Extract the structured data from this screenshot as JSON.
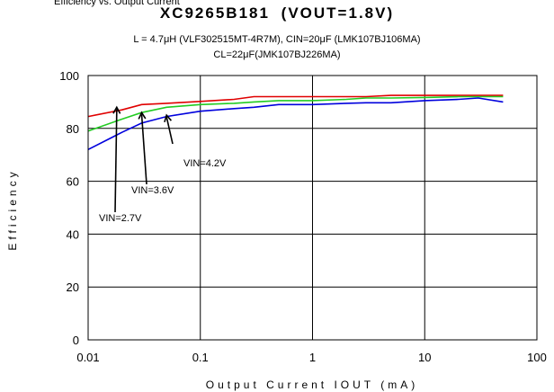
{
  "header": {
    "cut_off": "Efficiency vs. Output Current",
    "title": "XC9265B181",
    "title_suffix": "(VOUT=1.8V)",
    "subtitle_line1": "L = 4.7μH (VLF302515MT-4R7M), CIN=20μF (LMK107BJ106MA)",
    "subtitle_line2": "CL=22μF(JMK107BJ226MA)"
  },
  "chart_data": {
    "type": "line",
    "title": "XC9265B181",
    "xlabel": "Output Current IOUT (mA)",
    "ylabel": "Efficiency",
    "x_scale": "log",
    "xlim": [
      0.01,
      100
    ],
    "ylim": [
      0,
      100
    ],
    "x_ticks": [
      "0.01",
      "0.1",
      "1",
      "10",
      "100"
    ],
    "y_ticks": [
      "0",
      "20",
      "40",
      "60",
      "80",
      "100"
    ],
    "grid": true,
    "series": [
      {
        "name": "VIN=4.2V",
        "color": "#e00000",
        "x": [
          0.01,
          0.02,
          0.03,
          0.05,
          0.1,
          0.2,
          0.3,
          0.5,
          1,
          2,
          3,
          5,
          10,
          20,
          30,
          50
        ],
        "y": [
          84.5,
          87,
          89,
          89.5,
          90.2,
          91,
          92,
          92,
          92,
          92,
          92,
          92.5,
          92.5,
          92.5,
          92.5,
          92.5
        ]
      },
      {
        "name": "VIN=3.6V",
        "color": "#22cc22",
        "x": [
          0.01,
          0.02,
          0.03,
          0.05,
          0.1,
          0.2,
          0.3,
          0.5,
          1,
          2,
          3,
          5,
          10,
          20,
          30,
          50
        ],
        "y": [
          79,
          83.5,
          86,
          88,
          89,
          89.5,
          90,
          90.5,
          90.5,
          91,
          91.5,
          91.5,
          91.7,
          92,
          92,
          92
        ]
      },
      {
        "name": "VIN=2.7V",
        "color": "#0000dd",
        "x": [
          0.01,
          0.02,
          0.03,
          0.05,
          0.1,
          0.2,
          0.3,
          0.5,
          1,
          2,
          3,
          5,
          10,
          20,
          30,
          50
        ],
        "y": [
          72,
          78.5,
          82,
          84.5,
          86.5,
          87.5,
          88,
          89,
          89,
          89.5,
          89.7,
          89.7,
          90.5,
          91,
          91.5,
          90
        ]
      }
    ],
    "annotations": [
      {
        "label": "VIN=4.2V",
        "at_x": 0.05,
        "at_y": 85
      },
      {
        "label": "VIN=3.6V",
        "at_x": 0.03,
        "at_y": 86
      },
      {
        "label": "VIN=2.7V",
        "at_x": 0.018,
        "at_y": 88
      }
    ]
  }
}
